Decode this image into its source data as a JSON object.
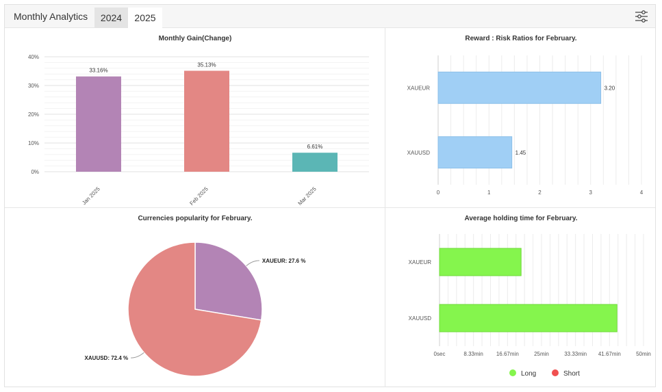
{
  "header": {
    "title": "Monthly Analytics",
    "tabs": [
      {
        "label": "2024",
        "active": true
      },
      {
        "label": "2025",
        "active": false
      }
    ],
    "settings_icon": "sliders-icon"
  },
  "chart_data": [
    {
      "type": "bar",
      "title": "Monthly Gain(Change)",
      "categories": [
        "Jan 2025",
        "Feb 2025",
        "Mar 2025"
      ],
      "values": [
        33.16,
        35.13,
        6.61
      ],
      "value_labels": [
        "33.16%",
        "35.13%",
        "6.61%"
      ],
      "colors": [
        "#b384b5",
        "#e38784",
        "#5bb6b5"
      ],
      "yticks": [
        "0%",
        "10%",
        "20%",
        "30%",
        "40%"
      ],
      "ylim": [
        0,
        40
      ],
      "grid": true
    },
    {
      "type": "bar",
      "orientation": "horizontal",
      "title": "Reward : Risk Ratios for February.",
      "categories": [
        "XAUEUR",
        "XAUUSD"
      ],
      "values": [
        3.2,
        1.45
      ],
      "value_labels": [
        "3.20",
        "1.45"
      ],
      "color": "#a0cff5",
      "xticks": [
        "0",
        "1",
        "2",
        "3",
        "4"
      ],
      "xlim": [
        0,
        4
      ],
      "grid": true
    },
    {
      "type": "pie",
      "title": "Currencies popularity for February.",
      "labels": [
        "XAUEUR: 27.6 %",
        "XAUUSD: 72.4 %"
      ],
      "values": [
        27.6,
        72.4
      ],
      "colors": [
        "#b384b5",
        "#e38784"
      ]
    },
    {
      "type": "bar",
      "orientation": "horizontal",
      "title": "Average holding time for February.",
      "categories": [
        "XAUEUR",
        "XAUUSD"
      ],
      "values": [
        20,
        43.5
      ],
      "unit": "min",
      "color": "#85f54d",
      "xticks": [
        "0sec",
        "8.33min",
        "16.67min",
        "25min",
        "33.33min",
        "41.67min",
        "50min"
      ],
      "xlim": [
        0,
        50
      ],
      "legend": [
        {
          "label": "Long",
          "color": "#85f54d"
        },
        {
          "label": "Short",
          "color": "#f05050"
        }
      ],
      "grid": true
    }
  ]
}
